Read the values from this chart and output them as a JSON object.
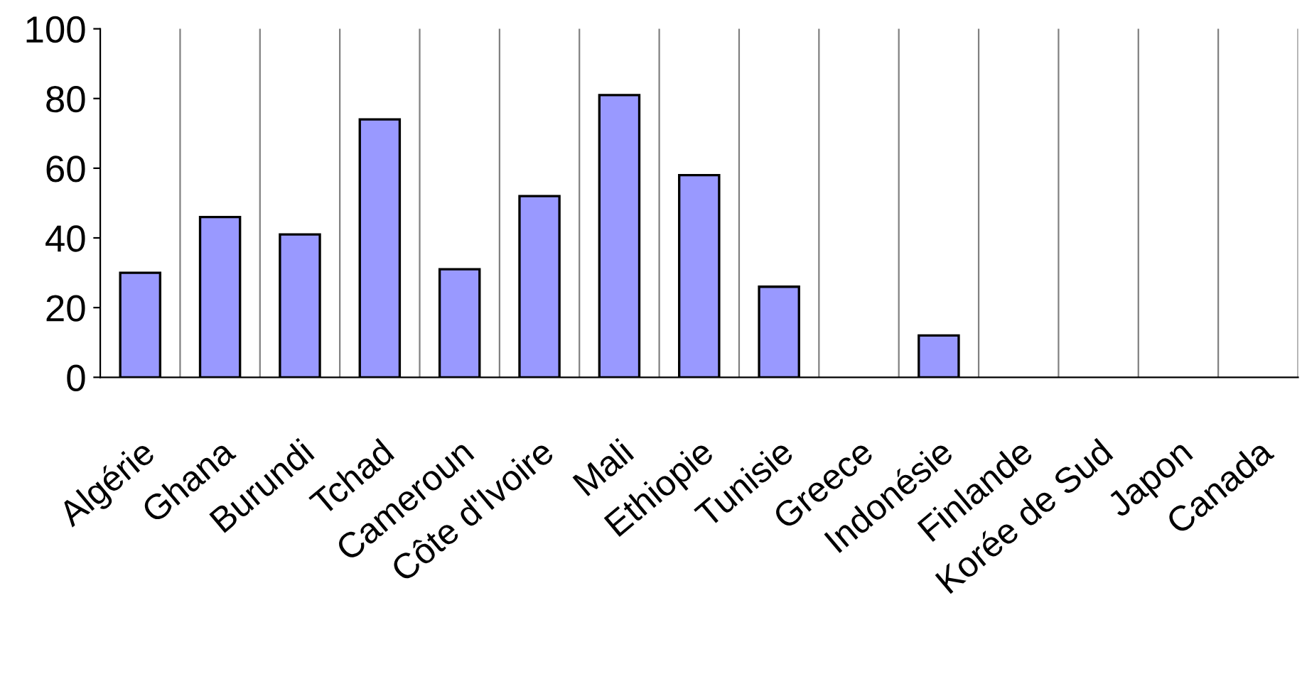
{
  "chart_data": {
    "type": "bar",
    "categories": [
      "Algérie",
      "Ghana",
      "Burundi",
      "Tchad",
      "Cameroun",
      "Côte d'Ivoire",
      "Mali",
      "Ethiopie",
      "Tunisie",
      "Greece",
      "Indonésie",
      "Finlande",
      "Korée de Sud",
      "Japon",
      "Canada"
    ],
    "values": [
      30,
      46,
      41,
      74,
      31,
      52,
      81,
      58,
      26,
      null,
      12,
      null,
      null,
      null,
      null
    ],
    "color": "#9999ff",
    "ylim": [
      0,
      100
    ],
    "yticks": [
      0,
      20,
      40,
      60,
      80,
      100
    ],
    "grid": "x"
  }
}
